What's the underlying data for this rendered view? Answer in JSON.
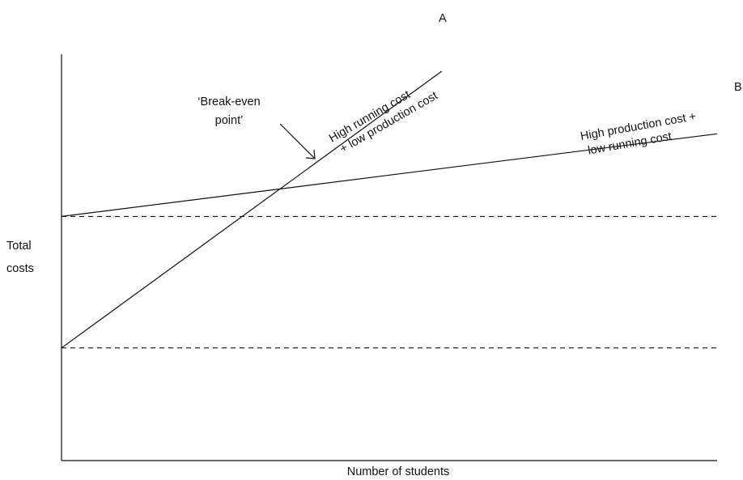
{
  "chart_data": {
    "type": "line",
    "title": "",
    "xlabel": "Number of students",
    "ylabel_lines": [
      "Total",
      "costs"
    ],
    "grid": false,
    "series": [
      {
        "label_end": "A",
        "annotation_lines": [
          "High running cost",
          "+ low production cost"
        ],
        "intercept": 0.3,
        "slope": 1.27
      },
      {
        "label_end": "B",
        "annotation_lines": [
          "High production cost +",
          "low running cost"
        ],
        "intercept": 0.65,
        "slope": 0.22
      }
    ],
    "reference_lines": [
      0.3,
      0.65
    ],
    "break_even": {
      "label_lines": [
        "‘Break-even",
        "point’"
      ]
    }
  },
  "colors": {
    "line": "#111111",
    "background": "#ffffff"
  }
}
